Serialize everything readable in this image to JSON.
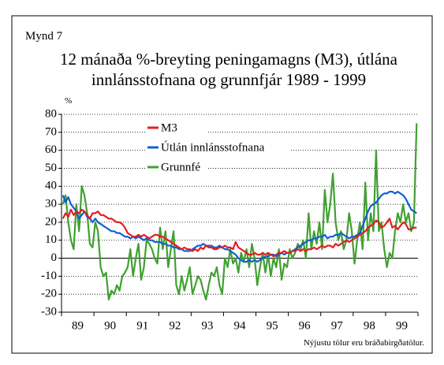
{
  "figure_label": "Mynd 7",
  "note": "Nýjustu tölur eru bráðabirgðatölur.",
  "chart_data": {
    "type": "line",
    "title": [
      "12 mánaða %-breyting peningamagns (M3), útlána",
      "innlánsstofnana og grunnfjár 1989 - 1999"
    ],
    "ylabel": "%",
    "categories": [
      null,
      null,
      null,
      null,
      null,
      null,
      "89",
      null,
      null,
      null,
      null,
      null,
      null,
      null,
      null,
      null,
      null,
      null,
      "90",
      null,
      null,
      null,
      null,
      null,
      null,
      null,
      null,
      null,
      null,
      null,
      "91",
      null,
      null,
      null,
      null,
      null,
      null,
      null,
      null,
      null,
      null,
      null,
      "92",
      null,
      null,
      null,
      null,
      null,
      null,
      null,
      null,
      null,
      null,
      null,
      "93",
      null,
      null,
      null,
      null,
      null,
      null,
      null,
      null,
      null,
      null,
      null,
      "94",
      null,
      null,
      null,
      null,
      null,
      null,
      null,
      null,
      null,
      null,
      null,
      "95",
      null,
      null,
      null,
      null,
      null,
      null,
      null,
      null,
      null,
      null,
      null,
      "96",
      null,
      null,
      null,
      null,
      null,
      null,
      null,
      null,
      null,
      null,
      null,
      "97",
      null,
      null,
      null,
      null,
      null,
      null,
      null,
      null,
      null,
      null,
      null,
      "98",
      null,
      null,
      null,
      null,
      null,
      null,
      null,
      null,
      null,
      null,
      null,
      "99",
      null,
      null,
      null,
      null,
      null
    ],
    "series": [
      {
        "name": "M3",
        "color": "#e02020",
        "values": [
          22,
          25,
          23,
          27,
          24,
          26,
          25,
          27,
          26,
          24,
          22,
          25,
          25,
          26,
          24,
          24,
          23,
          22,
          22,
          21,
          20,
          20,
          19,
          17,
          14,
          13,
          12,
          12,
          13,
          12,
          13,
          12,
          11,
          12,
          13,
          13,
          12,
          12,
          11,
          10,
          9,
          8,
          7,
          6,
          5,
          6,
          5,
          5,
          4,
          5,
          4,
          6,
          5,
          7,
          6,
          6,
          5,
          5,
          6,
          6,
          7,
          6,
          6,
          5,
          9,
          6,
          5,
          4,
          3,
          2,
          2,
          3,
          2,
          2,
          3,
          2,
          3,
          2,
          1,
          2,
          3,
          3,
          4,
          3,
          3,
          4,
          4,
          5,
          4,
          5,
          4,
          5,
          5,
          6,
          5,
          6,
          7,
          6,
          7,
          7,
          6,
          8,
          7,
          8,
          9,
          10,
          9,
          10,
          11,
          12,
          13,
          14,
          15,
          17,
          18,
          19,
          21,
          20,
          17,
          18,
          20,
          22,
          17,
          18,
          16,
          18,
          20,
          19,
          16,
          16,
          17,
          17
        ]
      },
      {
        "name": "Útlán innlánsstofnana",
        "color": "#1060d0",
        "values": [
          35,
          31,
          34,
          30,
          28,
          26,
          22,
          24,
          26,
          23,
          22,
          20,
          22,
          20,
          19,
          18,
          17,
          16,
          15,
          15,
          14,
          14,
          13,
          12,
          12,
          11,
          12,
          11,
          12,
          11,
          10,
          11,
          10,
          10,
          9,
          9,
          9,
          8,
          8,
          7,
          7,
          6,
          6,
          5,
          5,
          4,
          4,
          4,
          5,
          6,
          7,
          7,
          8,
          7,
          7,
          7,
          6,
          6,
          7,
          6,
          5,
          5,
          4,
          3,
          2,
          0,
          -1,
          -2,
          -2,
          -1,
          -2,
          -1,
          -2,
          -1,
          0,
          1,
          1,
          2,
          2,
          1,
          2,
          3,
          2,
          3,
          3,
          4,
          5,
          6,
          7,
          8,
          9,
          10,
          10,
          11,
          11,
          12,
          12,
          13,
          11,
          12,
          12,
          13,
          13,
          14,
          13,
          12,
          11,
          12,
          12,
          13,
          14,
          18,
          22,
          26,
          29,
          30,
          31,
          33,
          35,
          36,
          36,
          37,
          37,
          36,
          37,
          36,
          35,
          33,
          30,
          27,
          26,
          25
        ]
      },
      {
        "name": "Grunnfé",
        "color": "#40a030",
        "values": [
          30,
          35,
          20,
          10,
          5,
          30,
          15,
          40,
          35,
          25,
          8,
          6,
          20,
          15,
          -5,
          -10,
          -8,
          -23,
          -18,
          -20,
          -15,
          -18,
          -10,
          -8,
          -5,
          5,
          -10,
          0,
          8,
          -12,
          -5,
          10,
          8,
          5,
          0,
          -3,
          17,
          5,
          15,
          -5,
          5,
          15,
          -15,
          -20,
          -10,
          -18,
          -12,
          -5,
          -20,
          -15,
          -10,
          -12,
          -18,
          -23,
          -15,
          -8,
          -10,
          -5,
          -15,
          -20,
          0,
          -5,
          5,
          -3,
          0,
          -8,
          3,
          -2,
          5,
          -5,
          8,
          0,
          -15,
          -5,
          3,
          -8,
          2,
          -10,
          0,
          -5,
          5,
          -12,
          -3,
          -5,
          5,
          0,
          3,
          8,
          5,
          10,
          0,
          25,
          5,
          15,
          8,
          20,
          5,
          38,
          20,
          30,
          47,
          20,
          10,
          15,
          5,
          10,
          25,
          15,
          -3,
          10,
          20,
          5,
          42,
          10,
          25,
          15,
          60,
          15,
          20,
          5,
          -5,
          3,
          0,
          15,
          25,
          20,
          30,
          20,
          25,
          15,
          20,
          75
        ]
      }
    ],
    "ylim": [
      -30,
      80
    ],
    "yticks": [
      -30,
      -20,
      -10,
      0,
      10,
      20,
      30,
      40,
      50,
      60,
      70,
      80
    ],
    "grid": true,
    "legend": "top-left"
  }
}
